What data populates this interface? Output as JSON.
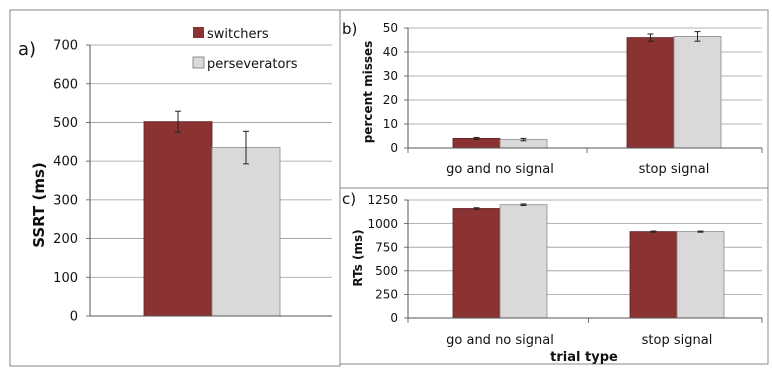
{
  "chart_data": [
    {
      "panel_label": "a)",
      "type": "bar",
      "ylabel": "SSRT (ms)",
      "ylim": [
        0,
        700
      ],
      "yticks": [
        0,
        100,
        200,
        300,
        400,
        500,
        600,
        700
      ],
      "grid": true,
      "legend": "top-right",
      "series": [
        {
          "name": "switchers",
          "color": "#8b3333",
          "values": [
            502
          ],
          "errors": [
            27
          ]
        },
        {
          "name": "perseverators",
          "color": "#d9d9d9",
          "values": [
            435
          ],
          "errors": [
            42
          ]
        }
      ]
    },
    {
      "panel_label": "b)",
      "type": "bar",
      "ylabel": "percent misses",
      "ylim": [
        0,
        50
      ],
      "yticks": [
        0,
        10,
        20,
        30,
        40,
        50
      ],
      "grid": true,
      "categories": [
        "go and no signal",
        "stop signal"
      ],
      "series": [
        {
          "name": "switchers",
          "color": "#8b3333",
          "values": [
            4,
            46
          ],
          "errors": [
            0.4,
            1.5
          ]
        },
        {
          "name": "perseverators",
          "color": "#d9d9d9",
          "values": [
            3.5,
            46.5
          ],
          "errors": [
            0.5,
            2.0
          ]
        }
      ]
    },
    {
      "panel_label": "c)",
      "type": "bar",
      "ylabel": "RTs (ms)",
      "xlabel": "trial type",
      "ylim": [
        0,
        1250
      ],
      "yticks": [
        0,
        250,
        500,
        750,
        1000,
        1250
      ],
      "grid": true,
      "categories": [
        "go and no signal",
        "stop signal"
      ],
      "series": [
        {
          "name": "switchers",
          "color": "#8b3333",
          "values": [
            1160,
            915
          ],
          "errors": [
            8,
            6
          ]
        },
        {
          "name": "perseverators",
          "color": "#d9d9d9",
          "values": [
            1200,
            915
          ],
          "errors": [
            8,
            6
          ]
        }
      ]
    }
  ]
}
